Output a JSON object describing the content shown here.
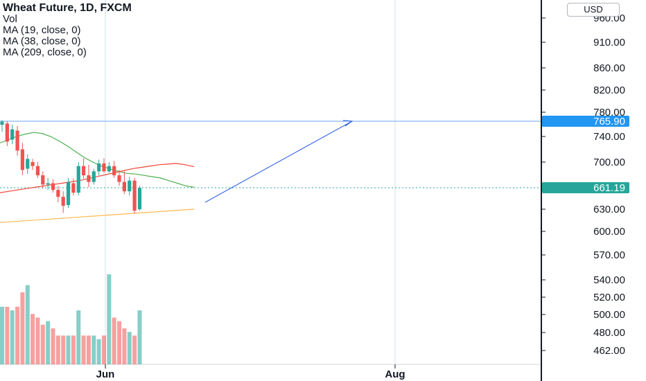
{
  "legend": {
    "title": "Wheat Future, 1D, FXCM",
    "vol": "Vol",
    "ma1": "MA (19, close, 0)",
    "ma2": "MA (38, close, 0)",
    "ma3": "MA (209, close, 0)"
  },
  "currency_button": "USD",
  "colors": {
    "up": "#26a69a",
    "down": "#ef5350",
    "ma19": "#4caf50",
    "ma38": "#f44336",
    "ma209": "#ffb74d",
    "drawing": "#1e53e5",
    "hline_label": "#2196f3",
    "price_label": "#26a69a"
  },
  "chart_data": {
    "type": "candlestick",
    "symbol": "Wheat Future, 1D, FXCM",
    "currency": "USD",
    "y_tick_labels": [
      "960.00",
      "910.00",
      "860.00",
      "820.00",
      "780.00",
      "740.00",
      "700.00",
      "630.00",
      "600.00",
      "570.00",
      "540.00",
      "520.00",
      "500.00",
      "480.00",
      "462.00"
    ],
    "x_tick_labels": [
      "Jun",
      "Aug"
    ],
    "current_price_label": "661.19",
    "horizontal_line_label": "765.90",
    "candles": [
      {
        "o": 760,
        "h": 768,
        "l": 748,
        "c": 765
      },
      {
        "o": 762,
        "h": 766,
        "l": 725,
        "c": 732
      },
      {
        "o": 735,
        "h": 760,
        "l": 728,
        "c": 752
      },
      {
        "o": 750,
        "h": 758,
        "l": 710,
        "c": 718
      },
      {
        "o": 720,
        "h": 730,
        "l": 680,
        "c": 688
      },
      {
        "o": 690,
        "h": 712,
        "l": 682,
        "c": 705
      },
      {
        "o": 700,
        "h": 705,
        "l": 688,
        "c": 694
      },
      {
        "o": 694,
        "h": 700,
        "l": 676,
        "c": 680
      },
      {
        "o": 680,
        "h": 686,
        "l": 660,
        "c": 666
      },
      {
        "o": 666,
        "h": 676,
        "l": 658,
        "c": 668
      },
      {
        "o": 668,
        "h": 674,
        "l": 654,
        "c": 658
      },
      {
        "o": 658,
        "h": 664,
        "l": 640,
        "c": 648
      },
      {
        "o": 648,
        "h": 656,
        "l": 625,
        "c": 635
      },
      {
        "o": 636,
        "h": 676,
        "l": 632,
        "c": 670
      },
      {
        "o": 668,
        "h": 675,
        "l": 650,
        "c": 654
      },
      {
        "o": 654,
        "h": 700,
        "l": 650,
        "c": 694
      },
      {
        "o": 694,
        "h": 706,
        "l": 675,
        "c": 680
      },
      {
        "o": 680,
        "h": 696,
        "l": 662,
        "c": 670
      },
      {
        "o": 670,
        "h": 690,
        "l": 666,
        "c": 686
      },
      {
        "o": 686,
        "h": 704,
        "l": 680,
        "c": 698
      },
      {
        "o": 698,
        "h": 706,
        "l": 684,
        "c": 686
      },
      {
        "o": 686,
        "h": 700,
        "l": 684,
        "c": 694
      },
      {
        "o": 694,
        "h": 702,
        "l": 676,
        "c": 680
      },
      {
        "o": 680,
        "h": 688,
        "l": 664,
        "c": 670
      },
      {
        "o": 670,
        "h": 686,
        "l": 652,
        "c": 656
      },
      {
        "o": 656,
        "h": 678,
        "l": 650,
        "c": 672
      },
      {
        "o": 672,
        "h": 676,
        "l": 624,
        "c": 628
      },
      {
        "o": 630,
        "h": 664,
        "l": 628,
        "c": 661
      }
    ],
    "volume": [
      16,
      16,
      15,
      16,
      20,
      22,
      14,
      13,
      11,
      12,
      10,
      8,
      8,
      8,
      8,
      15,
      8,
      8,
      8,
      7,
      8,
      25,
      13,
      12,
      10,
      9,
      8,
      15
    ],
    "ma19": [
      730,
      735,
      740,
      744,
      747,
      745,
      740,
      733,
      725,
      716,
      707,
      700,
      694,
      690,
      686,
      683,
      682,
      680,
      678,
      676,
      672,
      668,
      664,
      662
    ],
    "ma38": [
      654,
      656,
      658,
      660,
      662,
      664,
      666,
      668,
      670,
      672,
      675,
      678,
      681,
      684,
      687,
      690,
      692,
      694,
      696,
      697,
      698,
      696,
      693
    ],
    "ma209": [
      612,
      614,
      616,
      618,
      620,
      622,
      624,
      626,
      628,
      630
    ],
    "trend_line": {
      "from": 640,
      "to": 766
    }
  }
}
